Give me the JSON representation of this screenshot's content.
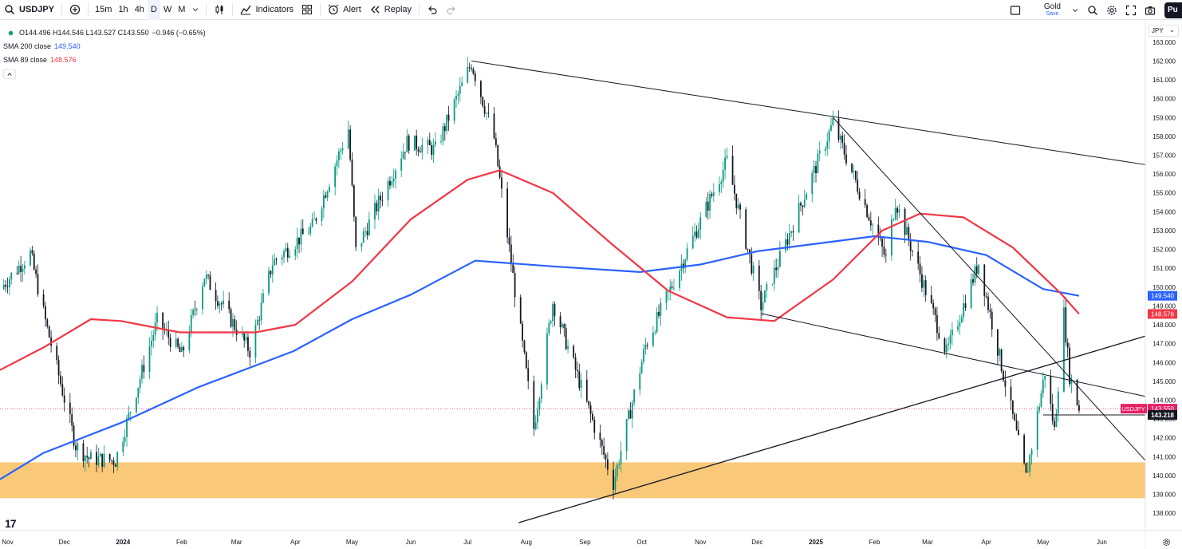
{
  "toolbar": {
    "symbol": "USDJPY",
    "timeframes": [
      "15m",
      "1h",
      "4h",
      "D",
      "W",
      "M"
    ],
    "active_timeframe": "D",
    "indicators_label": "Indicators",
    "alert_label": "Alert",
    "replay_label": "Replay",
    "layout_name": "Gold",
    "layout_status": "Save",
    "publish_label": "Pu"
  },
  "legend": {
    "ohlc": "O144.496 H144.546 L143.527 C143.550",
    "change": "−0.946 (−0.65%)",
    "sma200_label": "SMA 200 close",
    "sma200_value": "149.540",
    "sma89_label": "SMA 89 close",
    "sma89_value": "148.576"
  },
  "currency": "JPY",
  "colors": {
    "sma200": "#2962ff",
    "sma89": "#f23645",
    "zone": "#f9c879",
    "up": "#089981",
    "down": "#131722",
    "symbol_tag": "#e91e63"
  },
  "chart_data": {
    "type": "candlestick",
    "symbol": "USDJPY",
    "interval": "D",
    "y_range": [
      137.5,
      163.5
    ],
    "y_ticks": [
      138.0,
      139.0,
      140.0,
      141.0,
      142.0,
      143.0,
      144.0,
      145.0,
      146.0,
      147.0,
      148.0,
      149.0,
      150.0,
      151.0,
      152.0,
      153.0,
      154.0,
      155.0,
      156.0,
      157.0,
      158.0,
      159.0,
      160.0,
      161.0,
      162.0,
      163.0
    ],
    "x_ticks": [
      "Nov",
      "Dec",
      "2024",
      "Feb",
      "Mar",
      "Apr",
      "May",
      "Jun",
      "Jul",
      "Aug",
      "Sep",
      "Oct",
      "Nov",
      "Dec",
      "2025",
      "Feb",
      "Mar",
      "Apr",
      "May",
      "Jun"
    ],
    "x_range": [
      "2023-10-28",
      "2025-06-24"
    ],
    "x_tick_dates": [
      "2023-11-01",
      "2023-12-01",
      "2024-01-01",
      "2024-02-01",
      "2024-03-01",
      "2024-04-01",
      "2024-05-01",
      "2024-06-01",
      "2024-07-01",
      "2024-08-01",
      "2024-09-01",
      "2024-10-01",
      "2024-11-01",
      "2024-12-01",
      "2025-01-01",
      "2025-02-01",
      "2025-03-01",
      "2025-04-01",
      "2025-05-01",
      "2025-06-01"
    ],
    "price_path": [
      [
        "2023-10-28",
        149.9
      ],
      [
        "2023-11-13",
        151.8
      ],
      [
        "2023-11-21",
        148.2
      ],
      [
        "2023-12-07",
        141.6
      ],
      [
        "2023-12-14",
        140.9
      ],
      [
        "2023-12-28",
        140.8
      ],
      [
        "2024-01-19",
        148.2
      ],
      [
        "2024-02-01",
        146.4
      ],
      [
        "2024-02-13",
        150.6
      ],
      [
        "2024-03-08",
        146.6
      ],
      [
        "2024-03-20",
        151.3
      ],
      [
        "2024-04-10",
        153.2
      ],
      [
        "2024-04-29",
        158.4
      ],
      [
        "2024-05-03",
        151.9
      ],
      [
        "2024-05-30",
        157.7
      ],
      [
        "2024-06-14",
        157.3
      ],
      [
        "2024-07-03",
        161.9
      ],
      [
        "2024-07-15",
        157.9
      ],
      [
        "2024-08-05",
        142.5
      ],
      [
        "2024-08-15",
        149.2
      ],
      [
        "2024-09-16",
        139.6
      ],
      [
        "2024-10-03",
        146.9
      ],
      [
        "2024-11-15",
        156.7
      ],
      [
        "2024-12-03",
        149.0
      ],
      [
        "2025-01-10",
        158.7
      ],
      [
        "2025-02-07",
        151.5
      ],
      [
        "2025-02-12",
        154.6
      ],
      [
        "2025-03-11",
        146.5
      ],
      [
        "2025-03-28",
        151.3
      ],
      [
        "2025-04-22",
        139.9
      ],
      [
        "2025-05-02",
        145.5
      ],
      [
        "2025-05-07",
        142.4
      ],
      [
        "2025-05-12",
        148.6
      ],
      [
        "2025-05-15",
        145.3
      ],
      [
        "2025-05-20",
        143.55
      ]
    ],
    "sma200": [
      [
        "2023-10-28",
        139.8
      ],
      [
        "2023-11-20",
        141.2
      ],
      [
        "2023-12-31",
        142.8
      ],
      [
        "2024-02-10",
        144.7
      ],
      [
        "2024-03-31",
        146.6
      ],
      [
        "2024-05-01",
        148.3
      ],
      [
        "2024-06-01",
        149.6
      ],
      [
        "2024-07-05",
        151.4
      ],
      [
        "2024-08-15",
        151.1
      ],
      [
        "2024-09-30",
        150.8
      ],
      [
        "2024-11-01",
        151.2
      ],
      [
        "2024-12-01",
        151.9
      ],
      [
        "2025-01-01",
        152.3
      ],
      [
        "2025-02-01",
        152.7
      ],
      [
        "2025-03-01",
        152.4
      ],
      [
        "2025-04-01",
        151.7
      ],
      [
        "2025-05-01",
        149.9
      ],
      [
        "2025-05-20",
        149.54
      ]
    ],
    "sma89": [
      [
        "2023-10-28",
        145.6
      ],
      [
        "2023-11-20",
        146.8
      ],
      [
        "2023-12-15",
        148.3
      ],
      [
        "2023-12-31",
        148.2
      ],
      [
        "2024-01-31",
        147.6
      ],
      [
        "2024-03-11",
        147.6
      ],
      [
        "2024-04-01",
        148.0
      ],
      [
        "2024-05-01",
        150.3
      ],
      [
        "2024-06-01",
        153.6
      ],
      [
        "2024-07-01",
        155.7
      ],
      [
        "2024-07-18",
        156.2
      ],
      [
        "2024-08-15",
        155.0
      ],
      [
        "2024-09-15",
        152.3
      ],
      [
        "2024-10-15",
        149.8
      ],
      [
        "2024-11-15",
        148.4
      ],
      [
        "2024-12-10",
        148.2
      ],
      [
        "2025-01-10",
        150.4
      ],
      [
        "2025-02-05",
        153.0
      ],
      [
        "2025-02-25",
        153.9
      ],
      [
        "2025-03-20",
        153.7
      ],
      [
        "2025-04-15",
        152.1
      ],
      [
        "2025-05-10",
        149.7
      ],
      [
        "2025-05-20",
        148.576
      ]
    ],
    "trendlines": [
      {
        "from": [
          "2024-07-03",
          162.0
        ],
        "to": [
          "2025-06-24",
          156.5
        ]
      },
      {
        "from": [
          "2025-01-10",
          159.0
        ],
        "to": [
          "2025-06-24",
          140.8
        ]
      },
      {
        "from": [
          "2024-12-03",
          148.6
        ],
        "to": [
          "2025-06-24",
          144.2
        ]
      },
      {
        "from": [
          "2024-07-28",
          137.5
        ],
        "to": [
          "2025-06-24",
          147.4
        ]
      }
    ],
    "support_zone": [
      138.8,
      140.7
    ],
    "horizontal_line": {
      "from": "2025-05-01",
      "price": 143.218
    },
    "current_price_line": 143.55,
    "price_labels": [
      {
        "text": "149.540",
        "price": 149.54,
        "series": "sma200"
      },
      {
        "text": "148.576",
        "price": 148.576,
        "series": "sma89"
      },
      {
        "symbol": "USDJPY",
        "text": "143.550",
        "price": 143.55,
        "series": "price"
      },
      {
        "text": "143.218",
        "price": 143.218,
        "series": "line"
      }
    ]
  }
}
